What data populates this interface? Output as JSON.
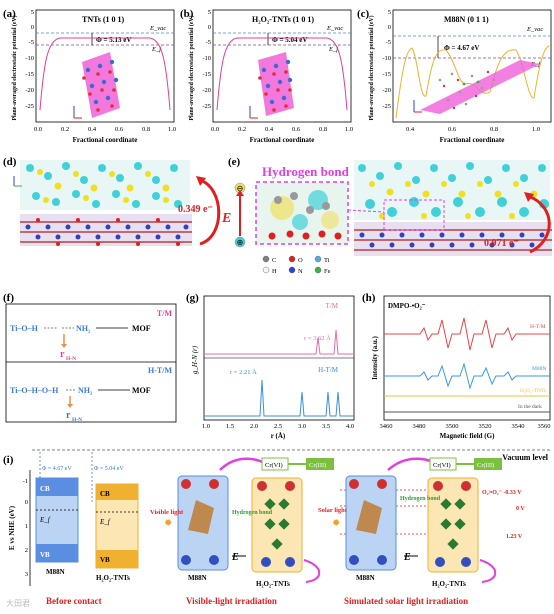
{
  "colors": {
    "tnt_curve": "#e0409a",
    "m88n_curve": "#e8b430",
    "blue_dash": "#4a86d8",
    "purple_dash": "#7a4ab0",
    "red_arrow": "#e02020",
    "hbond_magenta": "#e040e0",
    "tm_line": "#e86aa8",
    "htm_line": "#3a8ee0",
    "epr_htm": "#e04848",
    "epr_m88n": "#3a9ae0",
    "epr_h2o2": "#f0c040",
    "epr_dark": "#555555",
    "cb_blue": "#5a8ee0",
    "cb_orange": "#f0b030",
    "electron": "#d03030",
    "hole": "#3050c0",
    "green_box": "#7cc040"
  },
  "panel_a": {
    "label": "(a)",
    "title": "TNTs (1 0 1)",
    "evac": "E_vac",
    "ef": "E_f",
    "phi": "Φ = 5.13 eV",
    "ylabel": "Plane-averaged electrostatic potential (eV)",
    "xlabel": "Fractional coordinate",
    "yticks": [
      "5",
      "0",
      "-5",
      "-10",
      "-15",
      "-20",
      "-25"
    ],
    "xticks": [
      "0.0",
      "0.2",
      "0.4",
      "0.6",
      "0.8",
      "1.0"
    ]
  },
  "panel_b": {
    "label": "(b)",
    "title": "H₂O₂-TNTs (1 0 1)",
    "evac": "E_vac",
    "ef": "E_f",
    "phi": "Φ = 5.04 eV",
    "ylabel": "Plane-averaged electrostatic potential (eV)",
    "xlabel": "Fractional coordinate",
    "yticks": [
      "5",
      "0",
      "-5",
      "-10",
      "-15",
      "-20",
      "-25"
    ],
    "xticks": [
      "0.0",
      "0.2",
      "0.4",
      "0.6",
      "0.8",
      "1.0"
    ]
  },
  "panel_c": {
    "label": "(c)",
    "title": "M88N (0 1 1)",
    "evac": "E_vac",
    "ef": "E_f",
    "phi": "Φ = 4.67 eV",
    "ylabel": "Plane-averaged electrostatic potential (eV)",
    "xlabel": "Fractional coordinate",
    "yticks": [
      "5",
      "0",
      "-5",
      "-10",
      "-15",
      "-20",
      "-25"
    ],
    "xticks": [
      "0.4",
      "0.6",
      "0.8",
      "1.0"
    ]
  },
  "panel_d": {
    "label": "(d)",
    "charge": "0.349 e⁻"
  },
  "panel_e": {
    "label": "(e)",
    "hbond": "Hydrogen bond",
    "charge": "0.971 e⁻",
    "field": "E",
    "legend": [
      {
        "sym": "C",
        "color": "#7f7f7f"
      },
      {
        "sym": "O",
        "color": "#e02020"
      },
      {
        "sym": "Ti",
        "color": "#58a8e0"
      },
      {
        "sym": "H",
        "color": "#f4f4f4"
      },
      {
        "sym": "N",
        "color": "#3040d0"
      },
      {
        "sym": "Fe",
        "color": "#3ab040"
      }
    ]
  },
  "panel_f": {
    "label": "(f)",
    "tm": "T/M",
    "htm": "H-T/M",
    "mof": "MOF",
    "nh2": "NH₂",
    "r": "r",
    "rsub": "H-N"
  },
  "panel_g": {
    "label": "(g)",
    "ylabel": "g_H-N (r)",
    "xlabel": "r (Å)",
    "tm": "T/M",
    "htm": "H-T/M",
    "r_tm": "r = 3.62 Å",
    "r_htm": "r = 2.21 Å",
    "xticks": [
      "1.0",
      "1.5",
      "2.0",
      "2.5",
      "3.0",
      "3.5",
      "4.0"
    ]
  },
  "panel_h": {
    "label": "(h)",
    "title": "DMPO-•O₂⁻",
    "ylabel": "Intensity (a.u.)",
    "xlabel": "Magnetic field (G)",
    "series": [
      "H-T/M",
      "M88N",
      "H₂O₂-TNTs",
      "In the dark"
    ],
    "xticks": [
      "3460",
      "3480",
      "3500",
      "3520",
      "3540",
      "3560"
    ]
  },
  "panel_i": {
    "label": "(i)",
    "ylabel": "E vs NHE (eV)",
    "yticks": [
      "-1",
      "0",
      "1",
      "2",
      "3"
    ],
    "vacuum": "Vacuum level",
    "phi1": "Φ = 4.67 eV",
    "phi2": "Φ = 5.04 eV",
    "cb": "CB",
    "vb": "VB",
    "ef": "E_f",
    "m88n": "M88N",
    "h2o2tnts": "H₂O₂-TNTs",
    "before": "Before contact",
    "visible": "Visible-light irradiation",
    "solar": "Simulated solar light irradiation",
    "visible_light": "Visible light",
    "solar_light": "Solar light",
    "cr6": "Cr(VI)",
    "cr3": "Cr(III)",
    "hbond": "Hydrogen bond",
    "o2": "O₂/•O₂⁻ -0.33 V",
    "zero": "0 V",
    "v123": "1.23 V",
    "field": "E",
    "watermark": "大田君"
  }
}
